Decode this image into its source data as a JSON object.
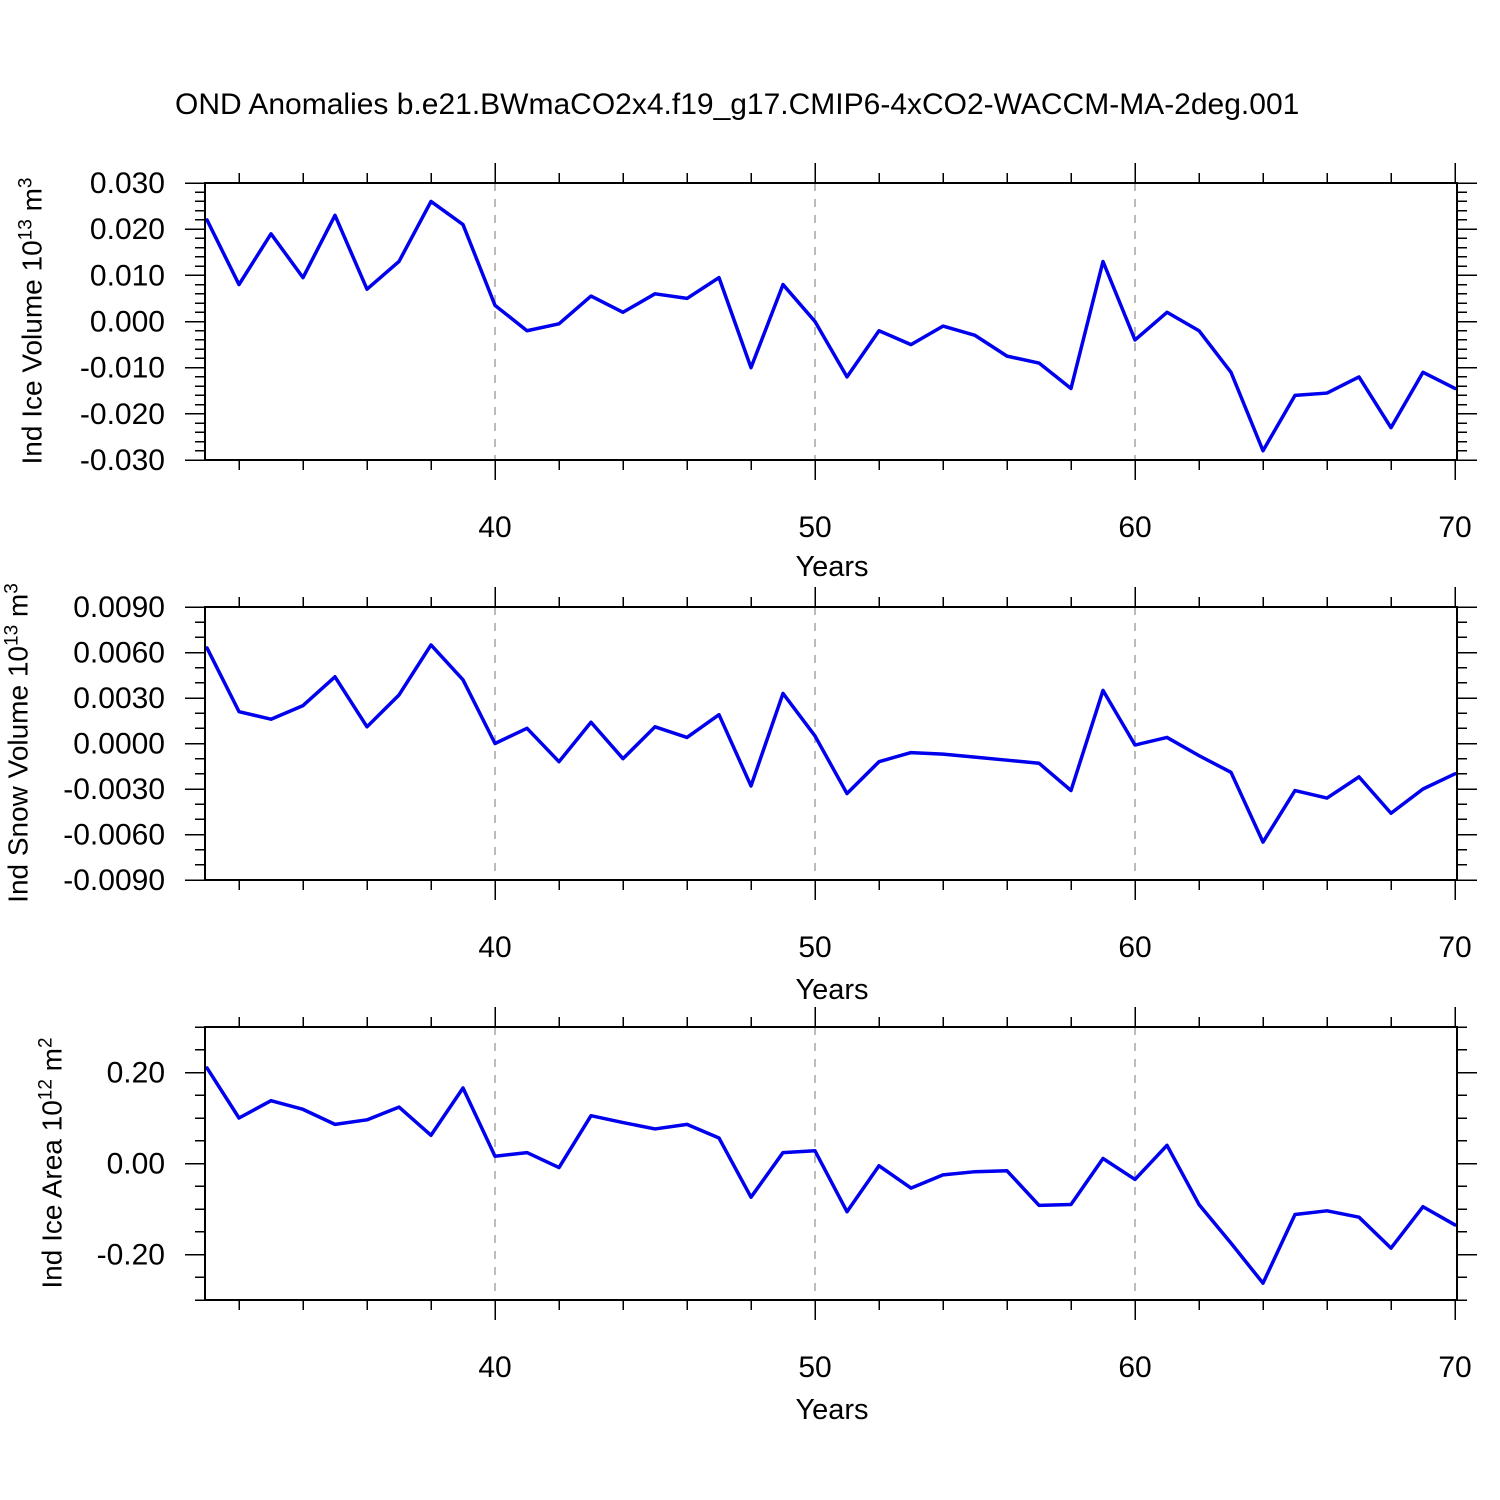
{
  "title": "OND Anomalies b.e21.BWmaCO2x4.f19_g17.CMIP6-4xCO2-WACCM-MA-2deg.001",
  "years": [
    31,
    32,
    33,
    34,
    35,
    36,
    37,
    38,
    39,
    40,
    41,
    42,
    43,
    44,
    45,
    46,
    47,
    48,
    49,
    50,
    51,
    52,
    53,
    54,
    55,
    56,
    57,
    58,
    59,
    60,
    61,
    62,
    63,
    64,
    65,
    66,
    67,
    68,
    69,
    70
  ],
  "line_color": "#0000EE",
  "grid_color": "#A6A6A6",
  "axis_color": "#000000",
  "chart_data": [
    {
      "type": "line",
      "name": "ind-ice-volume",
      "ylabel_text": "Ind Ice Volume 10^13 m^3",
      "ylabel_parts": [
        {
          "t": "Ind Ice Volume 10"
        },
        {
          "sup": "13"
        },
        {
          "t": " m"
        },
        {
          "sup": "3"
        }
      ],
      "xlabel": "Years",
      "x_start": 31,
      "x_step": 1,
      "values": [
        0.022,
        0.008,
        0.019,
        0.0095,
        0.023,
        0.007,
        0.013,
        0.026,
        0.021,
        0.0035,
        -0.002,
        -0.0005,
        0.0055,
        0.002,
        0.006,
        0.005,
        0.0095,
        -0.01,
        0.008,
        0.0,
        -0.012,
        -0.002,
        -0.005,
        -0.001,
        -0.003,
        -0.0075,
        -0.009,
        -0.0145,
        0.013,
        -0.004,
        0.002,
        -0.002,
        -0.011,
        -0.028,
        -0.016,
        -0.0155,
        -0.012,
        -0.023,
        -0.011,
        -0.0145
      ],
      "ylim": [
        -0.03,
        0.03
      ],
      "yticks": [
        {
          "v": 0.03,
          "label": "0.030"
        },
        {
          "v": 0.02,
          "label": "0.020"
        },
        {
          "v": 0.01,
          "label": "0.010"
        },
        {
          "v": 0.0,
          "label": "0.000"
        },
        {
          "v": -0.01,
          "label": "-0.010"
        },
        {
          "v": -0.02,
          "label": "-0.020"
        },
        {
          "v": -0.03,
          "label": "-0.030"
        }
      ],
      "ytick_minor_step": 0.002,
      "xlim": [
        31,
        70
      ],
      "xticks_major": [
        40,
        50,
        60,
        70
      ],
      "xtick_labels": [
        "40",
        "50",
        "60",
        "70"
      ],
      "xtick_minor_step": 2,
      "grid_x": [
        40,
        50,
        60
      ],
      "grid_style": "dashed",
      "legend": "none"
    },
    {
      "type": "line",
      "name": "ind-snow-volume",
      "ylabel_text": "Ind Snow Volume 10^13 m^3",
      "ylabel_parts": [
        {
          "t": "Ind Snow Volume 10"
        },
        {
          "sup": "13"
        },
        {
          "t": " m"
        },
        {
          "sup": "3"
        }
      ],
      "xlabel": "Years",
      "x_start": 31,
      "x_step": 1,
      "values": [
        0.0063,
        0.0021,
        0.0016,
        0.0025,
        0.0044,
        0.0011,
        0.0032,
        0.0065,
        0.0042,
        0.0,
        0.001,
        -0.0012,
        0.0014,
        -0.001,
        0.0011,
        0.0004,
        0.0019,
        -0.0028,
        0.0033,
        0.0005,
        -0.0033,
        -0.0012,
        -0.0006,
        -0.0007,
        -0.0009,
        -0.0011,
        -0.0013,
        -0.0031,
        0.0035,
        -0.0001,
        0.0004,
        -0.0008,
        -0.0019,
        -0.0065,
        -0.0031,
        -0.0036,
        -0.0022,
        -0.0046,
        -0.003,
        -0.002
      ],
      "ylim": [
        -0.009,
        0.009
      ],
      "yticks": [
        {
          "v": 0.009,
          "label": "0.0090"
        },
        {
          "v": 0.006,
          "label": "0.0060"
        },
        {
          "v": 0.003,
          "label": "0.0030"
        },
        {
          "v": 0.0,
          "label": "0.0000"
        },
        {
          "v": -0.003,
          "label": "-0.0030"
        },
        {
          "v": -0.006,
          "label": "-0.0060"
        },
        {
          "v": -0.009,
          "label": "-0.0090"
        }
      ],
      "ytick_minor_step": 0.001,
      "xlim": [
        31,
        70
      ],
      "xticks_major": [
        40,
        50,
        60,
        70
      ],
      "xtick_labels": [
        "40",
        "50",
        "60",
        "70"
      ],
      "xtick_minor_step": 2,
      "grid_x": [
        40,
        50,
        60
      ],
      "grid_style": "dashed",
      "legend": "none"
    },
    {
      "type": "line",
      "name": "ind-ice-area",
      "ylabel_text": "Ind Ice Area 10^12 m^2",
      "ylabel_parts": [
        {
          "t": "Ind Ice Area 10"
        },
        {
          "sup": "12"
        },
        {
          "t": " m"
        },
        {
          "sup": "2"
        }
      ],
      "xlabel": "Years",
      "x_start": 31,
      "x_step": 1,
      "values": [
        0.21,
        0.1,
        0.138,
        0.119,
        0.086,
        0.096,
        0.124,
        0.062,
        0.166,
        0.016,
        0.024,
        -0.009,
        0.105,
        0.09,
        0.076,
        0.086,
        0.056,
        -0.074,
        0.024,
        0.028,
        -0.106,
        -0.005,
        -0.054,
        -0.025,
        -0.018,
        -0.016,
        -0.092,
        -0.09,
        0.011,
        -0.035,
        0.04,
        -0.09,
        -0.175,
        -0.263,
        -0.112,
        -0.104,
        -0.118,
        -0.186,
        -0.095,
        -0.135
      ],
      "ylim": [
        -0.3,
        0.3
      ],
      "yticks": [
        {
          "v": 0.2,
          "label": "0.20"
        },
        {
          "v": 0.0,
          "label": "0.00"
        },
        {
          "v": -0.2,
          "label": "-0.20"
        }
      ],
      "ytick_minor_step": 0.05,
      "xlim": [
        31,
        70
      ],
      "xticks_major": [
        40,
        50,
        60,
        70
      ],
      "xtick_labels": [
        "40",
        "50",
        "60",
        "70"
      ],
      "xtick_minor_step": 2,
      "grid_x": [
        40,
        50,
        60
      ],
      "grid_style": "dashed",
      "legend": "none"
    }
  ]
}
